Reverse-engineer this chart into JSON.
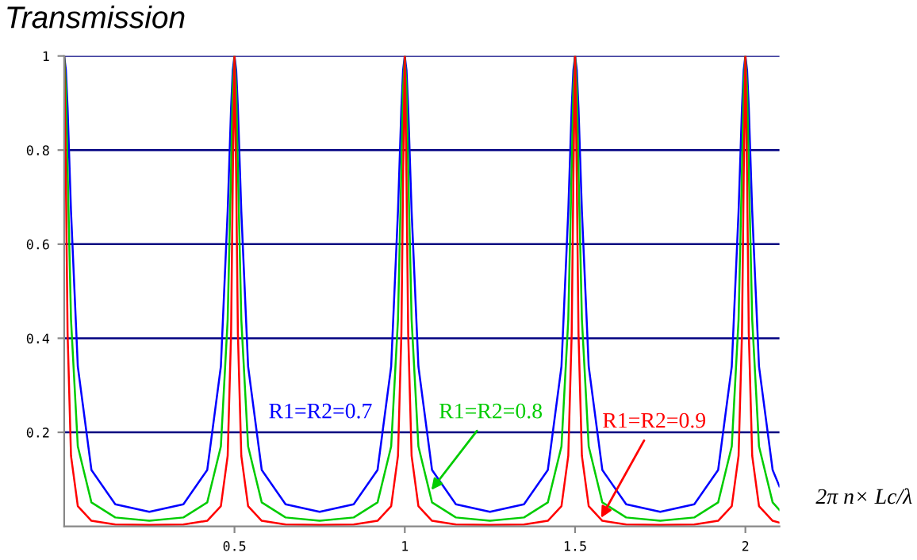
{
  "chart_data": {
    "type": "line",
    "title": "Transmission",
    "xlabel": "2π n× Lc/λ",
    "x": [
      0,
      0.005,
      0.01,
      0.02,
      0.04,
      0.08,
      0.15,
      0.25,
      0.35,
      0.42,
      0.46,
      0.48,
      0.49,
      0.495,
      0.5,
      0.505,
      0.51,
      0.52,
      0.54,
      0.58,
      0.65,
      0.75,
      0.85,
      0.92,
      0.96,
      0.98,
      0.99,
      0.995,
      1,
      1.005,
      1.01,
      1.02,
      1.04,
      1.08,
      1.15,
      1.25,
      1.35,
      1.42,
      1.46,
      1.48,
      1.49,
      1.495,
      1.5,
      1.505,
      1.51,
      1.52,
      1.54,
      1.58,
      1.65,
      1.75,
      1.85,
      1.92,
      1.96,
      1.98,
      1.99,
      1.995,
      2,
      2.005,
      2.01,
      2.02,
      2.04,
      2.08,
      2.1
    ],
    "series": [
      {
        "name": "R1=R2=0.7",
        "color": "#0000ff",
        "values": [
          1,
          0.97,
          0.89,
          0.67,
          0.34,
          0.12,
          0.047,
          0.031,
          0.047,
          0.12,
          0.34,
          0.67,
          0.89,
          0.97,
          1,
          0.97,
          0.89,
          0.67,
          0.34,
          0.12,
          0.047,
          0.031,
          0.047,
          0.12,
          0.34,
          0.67,
          0.89,
          0.97,
          1,
          0.97,
          0.89,
          0.67,
          0.34,
          0.12,
          0.047,
          0.031,
          0.047,
          0.12,
          0.34,
          0.67,
          0.89,
          0.97,
          1,
          0.97,
          0.89,
          0.67,
          0.34,
          0.12,
          0.047,
          0.031,
          0.047,
          0.12,
          0.34,
          0.67,
          0.89,
          0.97,
          1,
          0.97,
          0.89,
          0.67,
          0.34,
          0.12,
          0.085
        ]
      },
      {
        "name": "R1=R2=0.8",
        "color": "#00cc00",
        "values": [
          1,
          0.93,
          0.76,
          0.44,
          0.17,
          0.051,
          0.019,
          0.012,
          0.019,
          0.051,
          0.17,
          0.44,
          0.76,
          0.93,
          1,
          0.93,
          0.76,
          0.44,
          0.17,
          0.051,
          0.019,
          0.012,
          0.019,
          0.051,
          0.17,
          0.44,
          0.76,
          0.93,
          1,
          0.93,
          0.76,
          0.44,
          0.17,
          0.051,
          0.019,
          0.012,
          0.019,
          0.051,
          0.17,
          0.44,
          0.76,
          0.93,
          1,
          0.93,
          0.76,
          0.44,
          0.17,
          0.051,
          0.019,
          0.012,
          0.019,
          0.051,
          0.17,
          0.44,
          0.76,
          0.93,
          1,
          0.93,
          0.76,
          0.44,
          0.17,
          0.051,
          0.035
        ]
      },
      {
        "name": "R1=R2=0.9",
        "color": "#ff0000",
        "values": [
          1,
          0.74,
          0.41,
          0.15,
          0.043,
          0.012,
          0.004,
          0.003,
          0.004,
          0.012,
          0.043,
          0.15,
          0.41,
          0.74,
          1,
          0.74,
          0.41,
          0.15,
          0.043,
          0.012,
          0.004,
          0.003,
          0.004,
          0.012,
          0.043,
          0.15,
          0.41,
          0.74,
          1,
          0.74,
          0.41,
          0.15,
          0.043,
          0.012,
          0.004,
          0.003,
          0.004,
          0.012,
          0.043,
          0.15,
          0.41,
          0.74,
          1,
          0.74,
          0.41,
          0.15,
          0.043,
          0.012,
          0.004,
          0.003,
          0.004,
          0.012,
          0.043,
          0.15,
          0.41,
          0.74,
          1,
          0.74,
          0.41,
          0.15,
          0.043,
          0.012,
          0.008
        ]
      }
    ],
    "xlim": [
      0,
      2.1
    ],
    "ylim": [
      0,
      1
    ],
    "xticks": [
      0.5,
      1,
      1.5,
      2
    ],
    "yticks": [
      0.2,
      0.4,
      0.6,
      0.8,
      1
    ],
    "grid": "y",
    "legend": false,
    "marker": "none",
    "line_style": "solid"
  }
}
